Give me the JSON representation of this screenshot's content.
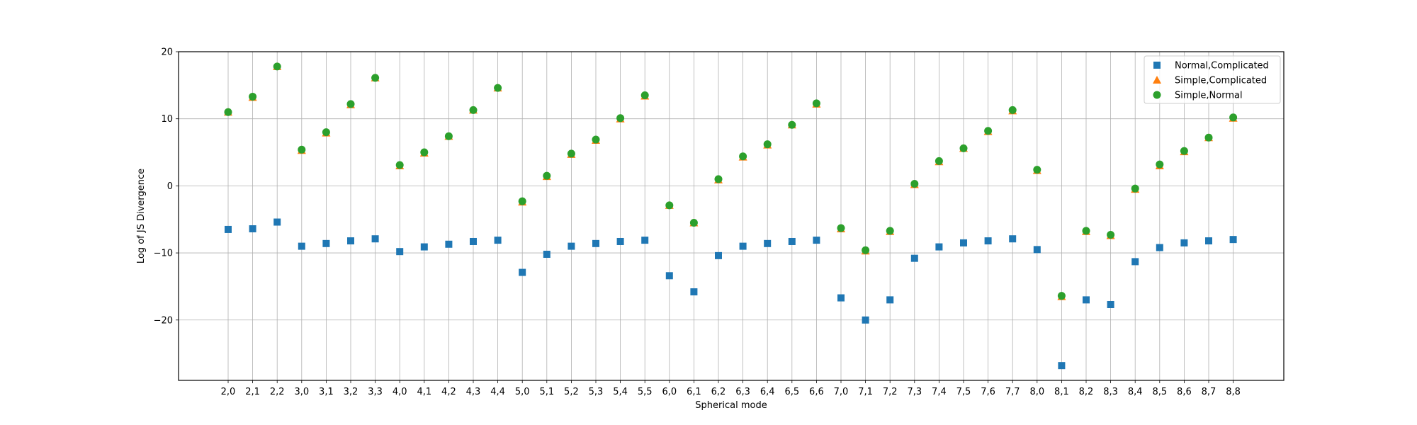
{
  "chart_data": {
    "type": "scatter",
    "xlabel": "Spherical mode",
    "ylabel": "Log of JS Divergence",
    "ylim": [
      -29,
      20
    ],
    "yticks": [
      -20,
      -10,
      0,
      10,
      20
    ],
    "yticklabels": [
      "−20",
      "−10",
      "0",
      "10",
      "20"
    ],
    "grid": true,
    "legend_position": "top-right",
    "categories": [
      "2,0",
      "2,1",
      "2,2",
      "3,0",
      "3,1",
      "3,2",
      "3,3",
      "4,0",
      "4,1",
      "4,2",
      "4,3",
      "4,4",
      "5,0",
      "5,1",
      "5,2",
      "5,3",
      "5,4",
      "5,5",
      "6,0",
      "6,1",
      "6,2",
      "6,3",
      "6,4",
      "6,5",
      "6,6",
      "7,0",
      "7,1",
      "7,2",
      "7,3",
      "7,4",
      "7,5",
      "7,6",
      "7,7",
      "8,0",
      "8,1",
      "8,2",
      "8,3",
      "8,4",
      "8,5",
      "8,6",
      "8,7",
      "8,8"
    ],
    "series": [
      {
        "name": "Normal,Complicated",
        "color": "#1f77b4",
        "marker": "square",
        "values": [
          -6.5,
          -6.4,
          -5.4,
          -9.0,
          -8.6,
          -8.2,
          -7.9,
          -9.8,
          -9.1,
          -8.7,
          -8.3,
          -8.1,
          -12.9,
          -10.2,
          -9.0,
          -8.6,
          -8.3,
          -8.1,
          -13.4,
          -15.8,
          -10.4,
          -9.0,
          -8.6,
          -8.3,
          -8.1,
          -16.7,
          -20.0,
          -17.0,
          -10.8,
          -9.1,
          -8.5,
          -8.2,
          -7.9,
          -9.5,
          -26.8,
          -17.0,
          -17.7,
          -11.3,
          -9.2,
          -8.5,
          -8.2,
          -8.0
        ]
      },
      {
        "name": "Simple,Complicated",
        "color": "#ff7f0e",
        "marker": "triangle",
        "values": [
          11.0,
          13.2,
          17.8,
          5.3,
          7.9,
          12.1,
          16.1,
          3.0,
          4.9,
          7.4,
          11.3,
          14.6,
          -2.4,
          1.4,
          4.7,
          6.8,
          10.0,
          13.4,
          -2.9,
          -5.5,
          0.9,
          4.3,
          6.1,
          9.1,
          12.2,
          -6.4,
          -9.7,
          -6.8,
          0.2,
          3.6,
          5.6,
          8.1,
          11.2,
          2.3,
          -16.5,
          -6.8,
          -7.4,
          -0.5,
          3.0,
          5.1,
          7.2,
          10.1
        ]
      },
      {
        "name": "Simple,Normal",
        "color": "#2ca02c",
        "marker": "circle",
        "values": [
          11.0,
          13.3,
          17.8,
          5.4,
          8.0,
          12.2,
          16.1,
          3.1,
          5.0,
          7.4,
          11.3,
          14.6,
          -2.3,
          1.5,
          4.8,
          6.9,
          10.1,
          13.5,
          -2.9,
          -5.5,
          1.0,
          4.4,
          6.2,
          9.1,
          12.3,
          -6.3,
          -9.6,
          -6.7,
          0.3,
          3.7,
          5.6,
          8.2,
          11.3,
          2.4,
          -16.4,
          -6.7,
          -7.3,
          -0.4,
          3.2,
          5.2,
          7.2,
          10.2
        ]
      }
    ]
  }
}
